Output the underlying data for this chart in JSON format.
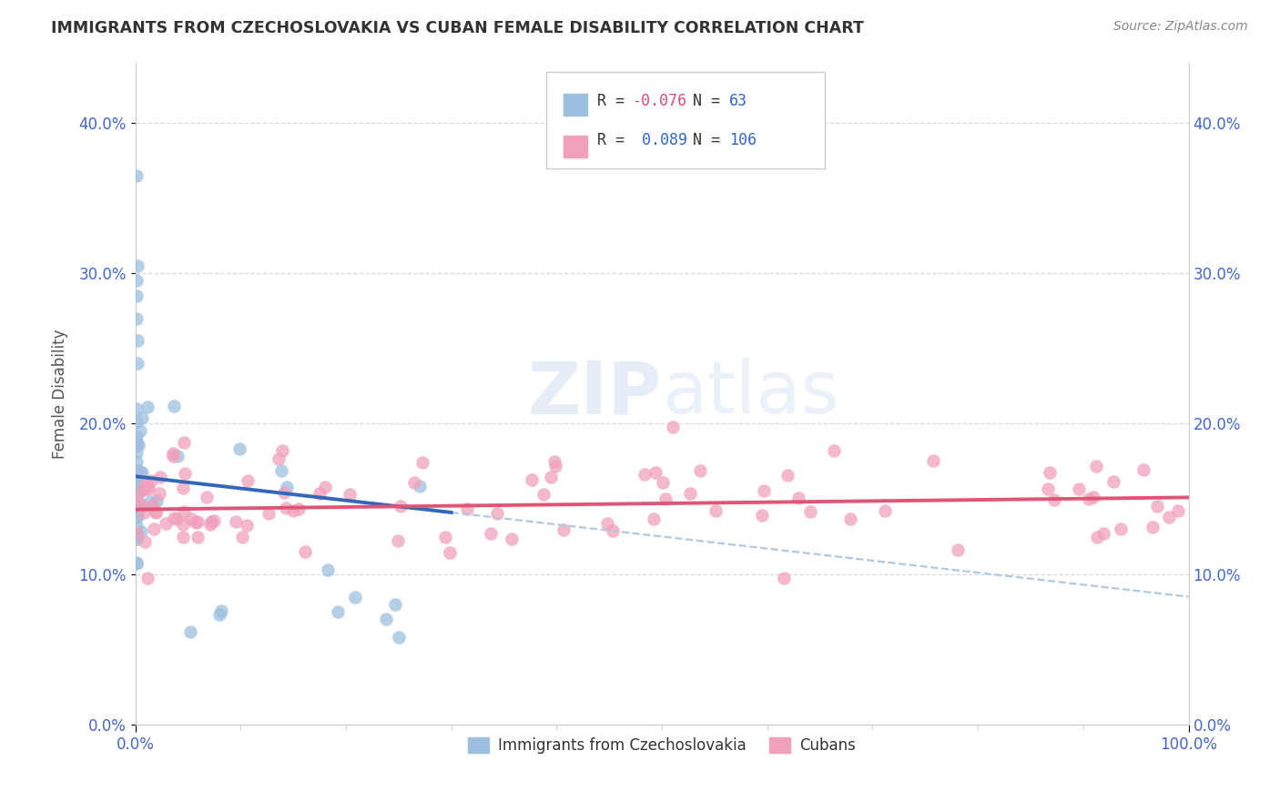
{
  "title": "IMMIGRANTS FROM CZECHOSLOVAKIA VS CUBAN FEMALE DISABILITY CORRELATION CHART",
  "source": "Source: ZipAtlas.com",
  "ylabel": "Female Disability",
  "legend_labels": [
    "Immigrants from Czechoslovakia",
    "Cubans"
  ],
  "r_czech": -0.076,
  "n_czech": 63,
  "r_cuban": 0.089,
  "n_cuban": 106,
  "xlim": [
    0.0,
    1.0
  ],
  "ylim": [
    0.0,
    0.44
  ],
  "x_ticks_labels": [
    "0.0%",
    "100.0%"
  ],
  "x_ticks_pos": [
    0.0,
    1.0
  ],
  "y_ticks": [
    0.0,
    0.1,
    0.2,
    0.3,
    0.4
  ],
  "color_czech": "#9dbfe0",
  "color_cuban": "#f0a0b8",
  "line_color_czech": "#3366bb",
  "line_color_cuban": "#e05575",
  "dash_color": "#b0c8e0",
  "watermark_zip": "ZIP",
  "watermark_atlas": "atlas",
  "bg_color": "#ffffff",
  "grid_color": "#d8d8d8",
  "tick_color": "#4466cc",
  "title_color": "#333333",
  "source_color": "#888888"
}
